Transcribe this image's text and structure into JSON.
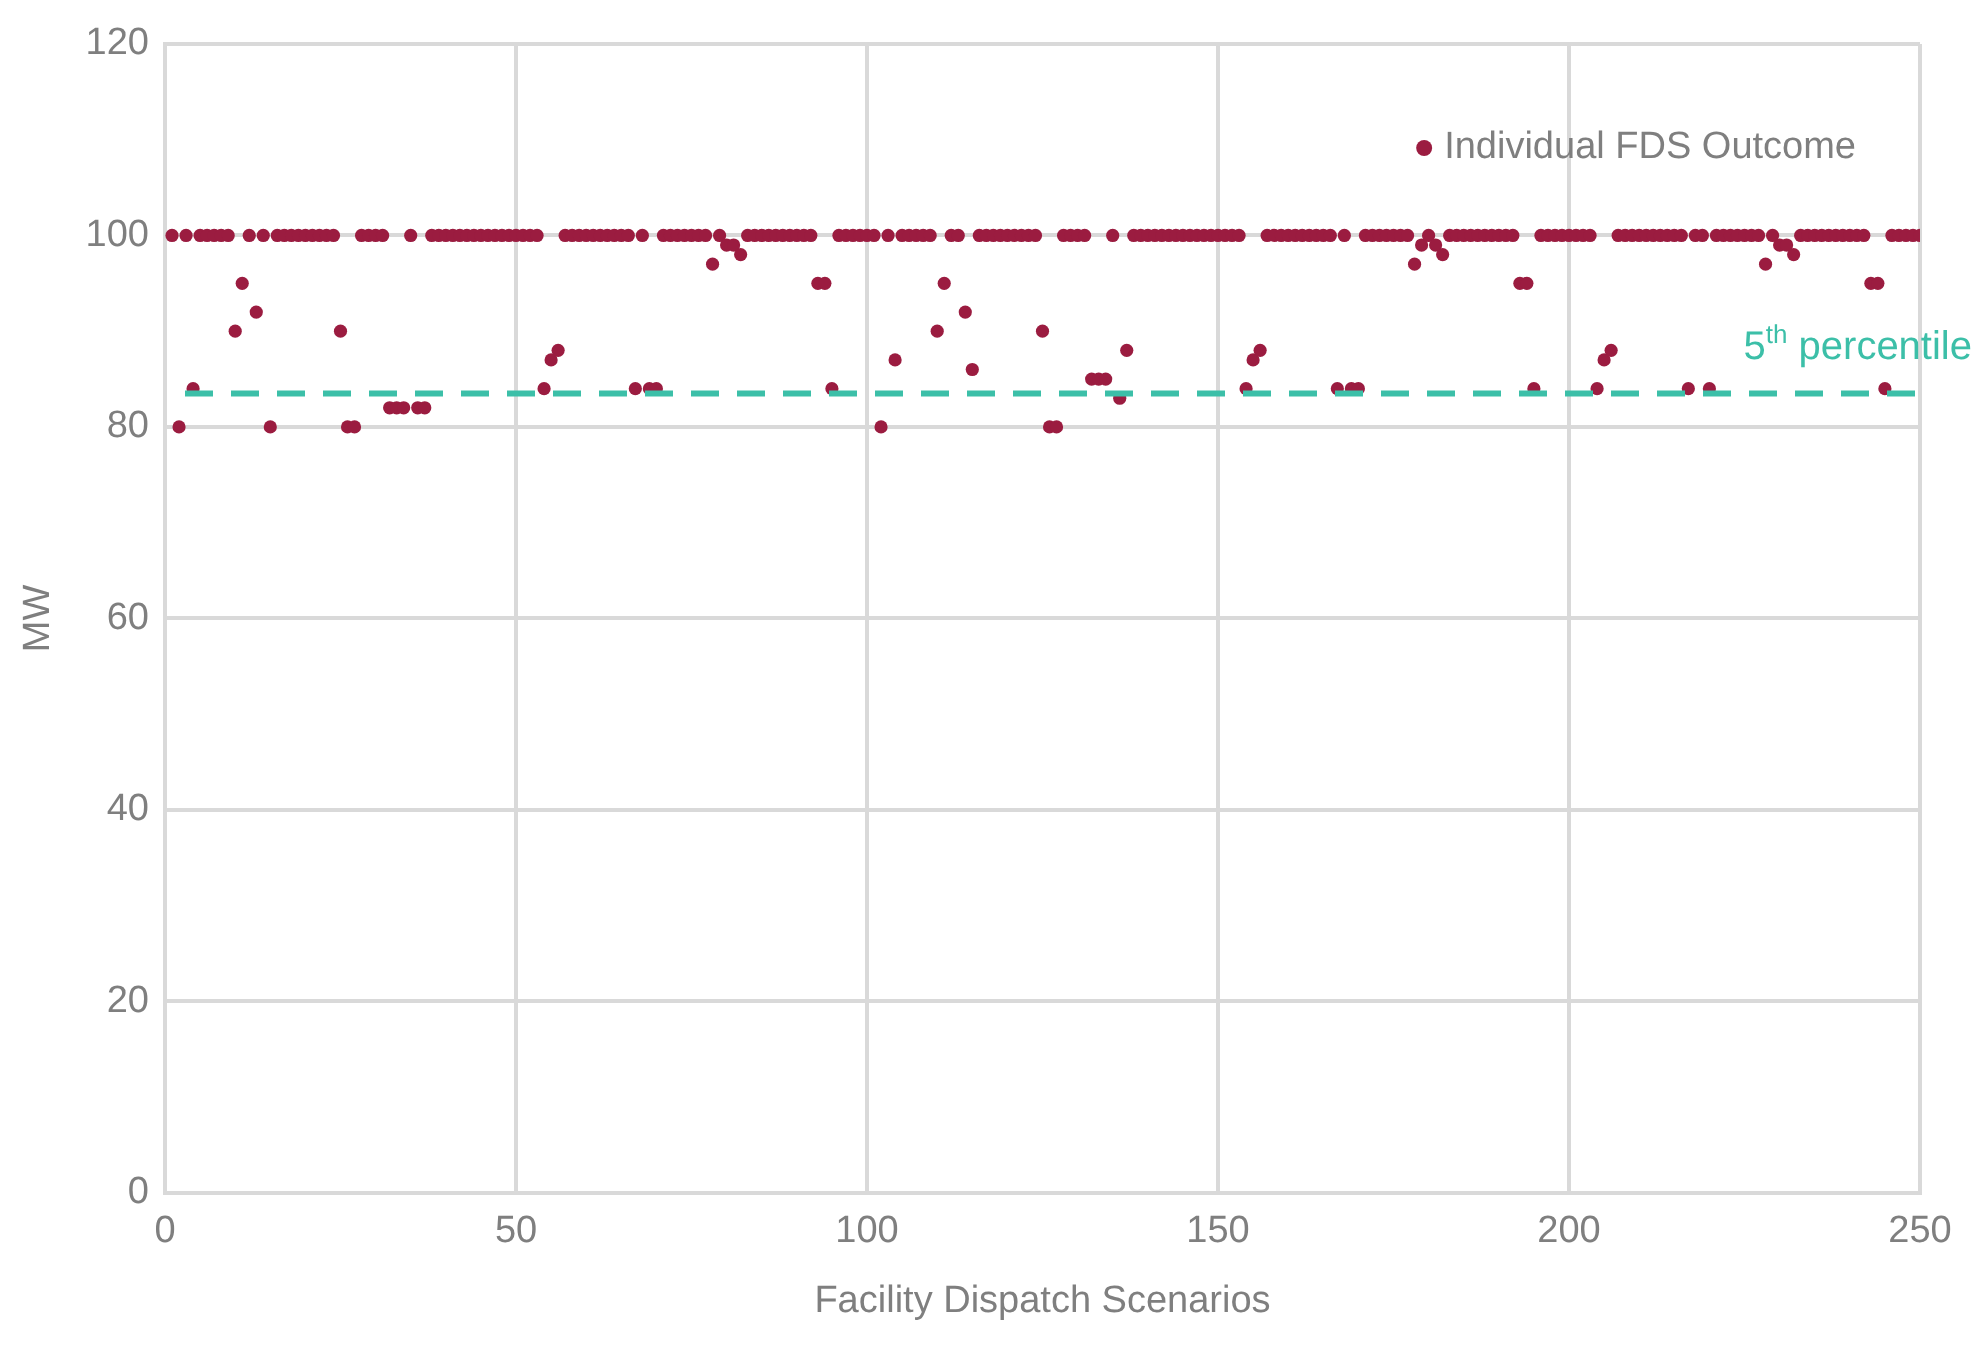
{
  "chart_data": {
    "type": "scatter",
    "xlabel": "Facility Dispatch Scenarios",
    "ylabel": "MW",
    "xlim": [
      0,
      250
    ],
    "xticks": [
      0,
      50,
      100,
      150,
      200,
      250
    ],
    "ylim": [
      0,
      120
    ],
    "yticks": [
      0,
      20,
      40,
      60,
      80,
      100,
      120
    ],
    "grid": true,
    "legend": "top right",
    "marker": "circle",
    "ref_lines": [
      {
        "axis": "y",
        "value": 83.5,
        "label": "5$^{th}$ percentile",
        "color": "#3cbfa8",
        "line_style": "dashed"
      }
    ],
    "series": [
      {
        "name": "Individual FDS Outcome",
        "color": "#9b1c40",
        "x": [
          1,
          2,
          3,
          4,
          5,
          6,
          7,
          8,
          9,
          10,
          11,
          12,
          13,
          14,
          15,
          16,
          17,
          18,
          19,
          20,
          21,
          22,
          23,
          24,
          25,
          26,
          27,
          28,
          29,
          30,
          31,
          32,
          33,
          34,
          35,
          36,
          37,
          38,
          39,
          40,
          41,
          42,
          43,
          44,
          45,
          46,
          47,
          48,
          49,
          50,
          51,
          52,
          53,
          54,
          55,
          56,
          57,
          58,
          59,
          60,
          61,
          62,
          63,
          64,
          65,
          66,
          67,
          68,
          69,
          70,
          71,
          72,
          73,
          74,
          75,
          76,
          77,
          78,
          79,
          80,
          81,
          82,
          83,
          84,
          85,
          86,
          87,
          88,
          89,
          90,
          91,
          92,
          93,
          94,
          95,
          96,
          97,
          98,
          99,
          100,
          101,
          102,
          103,
          104,
          105,
          106,
          107,
          108,
          109,
          110,
          111,
          112,
          113,
          114,
          115,
          116,
          117,
          118,
          119,
          120,
          121,
          122,
          123,
          124,
          125,
          126,
          127,
          128,
          129,
          130,
          131,
          132,
          133,
          134,
          135,
          136,
          137,
          138,
          139,
          140,
          141,
          142,
          143,
          144,
          145,
          146,
          147,
          148,
          149,
          150,
          151,
          152,
          153,
          154,
          155,
          156,
          157,
          158,
          159,
          160,
          161,
          162,
          163,
          164,
          165,
          166,
          167,
          168,
          169,
          170,
          171,
          172,
          173,
          174,
          175,
          176,
          177,
          178,
          179,
          180,
          181,
          182,
          183,
          184,
          185,
          186,
          187,
          188,
          189,
          190,
          191,
          192,
          193,
          194,
          195,
          196,
          197,
          198,
          199,
          200,
          201,
          202,
          203,
          204,
          205,
          206,
          207,
          208,
          209,
          210,
          211,
          212,
          213,
          214,
          215,
          216,
          217,
          218,
          219,
          220,
          221,
          222,
          223,
          224,
          225,
          226,
          227,
          228,
          229,
          230,
          231,
          232,
          233,
          234,
          235,
          236,
          237,
          238,
          239,
          240,
          241,
          242,
          243,
          244,
          245,
          246,
          247,
          248,
          249,
          250
        ],
        "values": [
          100,
          80,
          100,
          84,
          100,
          100,
          100,
          100,
          100,
          90,
          95,
          100,
          92,
          100,
          80,
          100,
          100,
          100,
          100,
          100,
          100,
          100,
          100,
          100,
          90,
          80,
          80,
          100,
          100,
          100,
          100,
          82,
          82,
          82,
          100,
          82,
          82,
          100,
          100,
          100,
          100,
          100,
          100,
          100,
          100,
          100,
          100,
          100,
          100,
          100,
          100,
          100,
          100,
          84,
          87,
          88,
          100,
          100,
          100,
          100,
          100,
          100,
          100,
          100,
          100,
          100,
          84,
          100,
          84,
          84,
          100,
          100,
          100,
          100,
          100,
          100,
          100,
          97,
          100,
          99,
          99,
          98,
          100,
          100,
          100,
          100,
          100,
          100,
          100,
          100,
          100,
          100,
          95,
          95,
          84,
          100,
          100,
          100,
          100,
          100,
          100,
          80,
          100,
          87,
          100,
          100,
          100,
          100,
          100,
          90,
          95,
          100,
          100,
          92,
          86,
          100,
          100,
          100,
          100,
          100,
          100,
          100,
          100,
          100,
          90,
          80,
          80,
          100,
          100,
          100,
          100,
          85,
          85,
          85,
          100,
          83,
          88,
          100,
          100,
          100,
          100,
          100,
          100,
          100,
          100,
          100,
          100,
          100,
          100,
          100,
          100,
          100,
          100,
          84,
          87,
          88,
          100,
          100,
          100,
          100,
          100,
          100,
          100,
          100,
          100,
          100,
          84,
          100,
          84,
          84,
          100,
          100,
          100,
          100,
          100,
          100,
          100,
          97,
          99,
          100,
          99,
          98,
          100,
          100,
          100,
          100,
          100,
          100,
          100,
          100,
          100,
          100,
          95,
          95,
          84,
          100,
          100,
          100,
          100,
          100,
          100,
          100,
          100,
          84,
          87,
          88,
          100,
          100,
          100,
          100,
          100,
          100,
          100,
          100,
          100,
          100,
          84,
          100,
          100,
          84,
          100,
          100,
          100,
          100,
          100,
          100,
          100,
          97,
          100,
          99,
          99,
          98,
          100,
          100,
          100,
          100,
          100,
          100,
          100,
          100,
          100,
          100,
          95,
          95,
          84,
          100,
          100,
          100,
          100,
          100
        ]
      }
    ]
  }
}
